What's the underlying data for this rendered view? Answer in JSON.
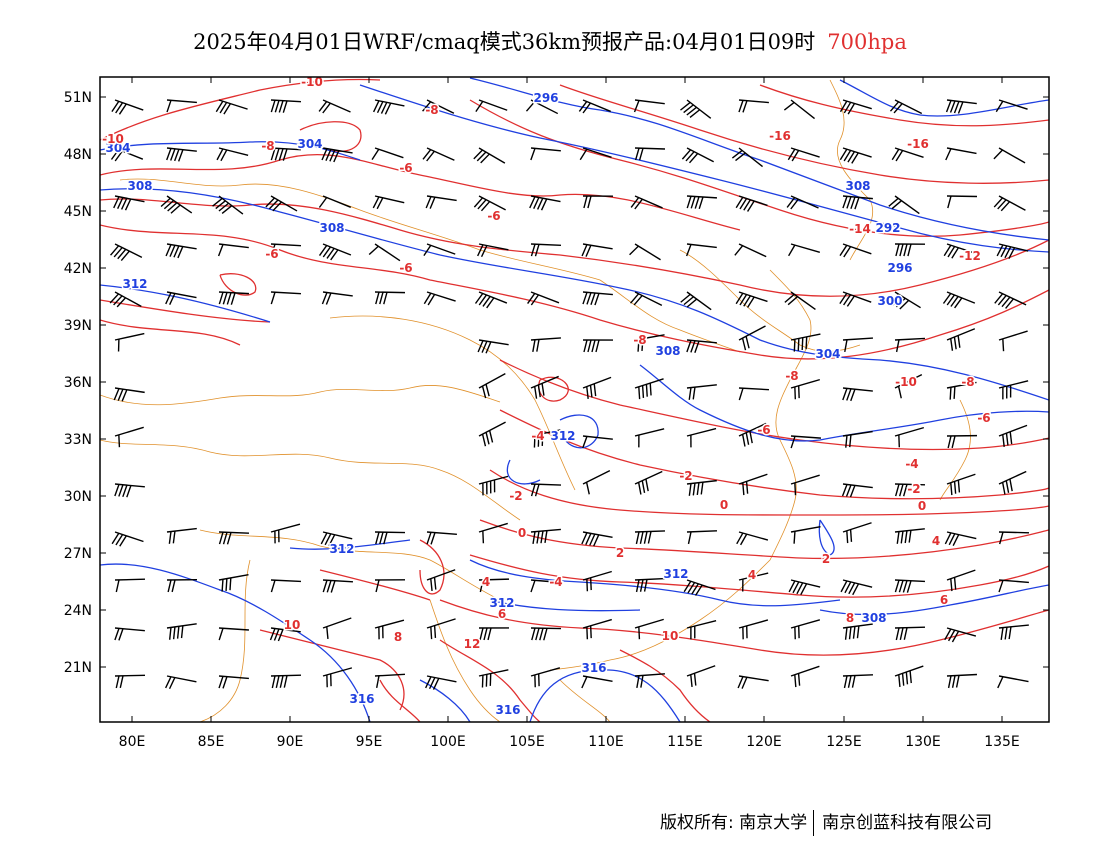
{
  "title": {
    "main": "2025年04月01日WRF/cmaq模式36km预报产品:04月01日09时",
    "level": "700hpa"
  },
  "axes": {
    "lat_labels": [
      "51N",
      "48N",
      "45N",
      "42N",
      "39N",
      "36N",
      "33N",
      "30N",
      "27N",
      "24N",
      "21N"
    ],
    "lon_labels": [
      "80E",
      "85E",
      "90E",
      "95E",
      "100E",
      "105E",
      "110E",
      "115E",
      "120E",
      "125E",
      "130E",
      "135E"
    ]
  },
  "contours": {
    "geopotential_color": "#2040e0",
    "temperature_color": "#e03030",
    "geopotential_labels": [
      "304",
      "304",
      "308",
      "308",
      "312",
      "296",
      "308",
      "292",
      "296",
      "300",
      "308",
      "304",
      "312",
      "312",
      "312",
      "308",
      "312",
      "316",
      "316",
      "316"
    ],
    "temperature_labels": [
      "-10",
      "-10",
      "-8",
      "-8",
      "-6",
      "-6",
      "-6",
      "-6",
      "-16",
      "-16",
      "-14",
      "-12",
      "-10",
      "-8",
      "-8",
      "-6",
      "-8",
      "-6",
      "-4",
      "-4",
      "-2",
      "-2",
      "-2",
      "0",
      "0",
      "0",
      "2",
      "2",
      "4",
      "4",
      "4",
      "6",
      "6",
      "8",
      "8",
      "10",
      "10",
      "12",
      "-4"
    ]
  },
  "footer": {
    "left": "版权所有: 南京大学",
    "right": "南京创蓝科技有限公司"
  }
}
